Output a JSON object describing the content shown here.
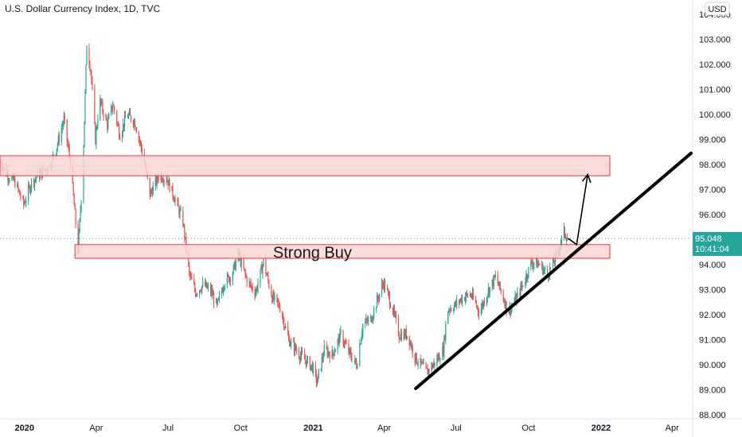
{
  "header": {
    "title": "U.S. Dollar Currency Index, 1D, TVC"
  },
  "axis": {
    "currency": "USD"
  },
  "colors": {
    "up": "#26a69a",
    "down": "#ef5350",
    "zone_fill": "#fcd5d5",
    "zone_stroke": "#e53935",
    "label_bg": "#26a69a",
    "line": "#000000"
  },
  "chart_data": {
    "type": "candlestick",
    "x_ticks": [
      {
        "date": "2020-01-01",
        "label": "2020",
        "bold": true
      },
      {
        "date": "2020-04-01",
        "label": "Apr"
      },
      {
        "date": "2020-07-01",
        "label": "Jul"
      },
      {
        "date": "2020-10-01",
        "label": "Oct"
      },
      {
        "date": "2021-01-01",
        "label": "2021",
        "bold": true
      },
      {
        "date": "2021-04-01",
        "label": "Apr"
      },
      {
        "date": "2021-07-01",
        "label": "Jul"
      },
      {
        "date": "2021-10-01",
        "label": "Oct"
      },
      {
        "date": "2022-01-01",
        "label": "2022",
        "bold": true
      },
      {
        "date": "2022-04-01",
        "label": "Apr"
      }
    ],
    "y_ticks": [
      "104.000",
      "103.000",
      "102.000",
      "101.000",
      "100.000",
      "99.000",
      "98.000",
      "97.000",
      "96.000",
      "95.000",
      "94.000",
      "93.000",
      "92.000",
      "91.000",
      "90.000",
      "89.000",
      "88.000"
    ],
    "ylim": [
      88,
      104
    ],
    "xlim": [
      "2019-12-01",
      "2022-04-25"
    ],
    "path": [
      [
        "2019-12-02",
        98.1
      ],
      [
        "2019-12-10",
        97.6
      ],
      [
        "2019-12-20",
        97.3
      ],
      [
        "2019-12-31",
        96.4
      ],
      [
        "2020-01-10",
        97.3
      ],
      [
        "2020-01-20",
        97.6
      ],
      [
        "2020-02-01",
        97.9
      ],
      [
        "2020-02-10",
        98.6
      ],
      [
        "2020-02-20",
        99.8
      ],
      [
        "2020-02-28",
        98.1
      ],
      [
        "2020-03-09",
        94.6
      ],
      [
        "2020-03-15",
        97.8
      ],
      [
        "2020-03-20",
        102.8
      ],
      [
        "2020-03-25",
        101.8
      ],
      [
        "2020-03-31",
        99.0
      ],
      [
        "2020-04-05",
        100.6
      ],
      [
        "2020-04-15",
        99.6
      ],
      [
        "2020-04-22",
        100.4
      ],
      [
        "2020-05-01",
        99.2
      ],
      [
        "2020-05-10",
        100.0
      ],
      [
        "2020-05-20",
        99.7
      ],
      [
        "2020-05-31",
        98.3
      ],
      [
        "2020-06-08",
        96.8
      ],
      [
        "2020-06-20",
        97.6
      ],
      [
        "2020-06-30",
        97.4
      ],
      [
        "2020-07-10",
        96.6
      ],
      [
        "2020-07-20",
        95.7
      ],
      [
        "2020-07-28",
        93.6
      ],
      [
        "2020-08-05",
        92.9
      ],
      [
        "2020-08-15",
        93.2
      ],
      [
        "2020-08-25",
        92.9
      ],
      [
        "2020-09-01",
        92.3
      ],
      [
        "2020-09-10",
        93.3
      ],
      [
        "2020-09-20",
        93.6
      ],
      [
        "2020-09-28",
        94.4
      ],
      [
        "2020-10-10",
        93.3
      ],
      [
        "2020-10-20",
        92.9
      ],
      [
        "2020-10-30",
        94.1
      ],
      [
        "2020-11-10",
        92.7
      ],
      [
        "2020-11-20",
        92.3
      ],
      [
        "2020-12-01",
        91.0
      ],
      [
        "2020-12-15",
        90.4
      ],
      [
        "2020-12-31",
        89.9
      ],
      [
        "2021-01-06",
        89.3
      ],
      [
        "2021-01-15",
        90.6
      ],
      [
        "2021-01-25",
        90.4
      ],
      [
        "2021-02-05",
        91.2
      ],
      [
        "2021-02-15",
        90.5
      ],
      [
        "2021-02-25",
        90.0
      ],
      [
        "2021-03-05",
        91.6
      ],
      [
        "2021-03-15",
        91.8
      ],
      [
        "2021-03-31",
        93.3
      ],
      [
        "2021-04-10",
        92.4
      ],
      [
        "2021-04-20",
        91.2
      ],
      [
        "2021-05-01",
        91.2
      ],
      [
        "2021-05-10",
        90.3
      ],
      [
        "2021-05-25",
        89.7
      ],
      [
        "2021-06-05",
        90.1
      ],
      [
        "2021-06-15",
        90.6
      ],
      [
        "2021-06-20",
        92.2
      ],
      [
        "2021-07-01",
        92.4
      ],
      [
        "2021-07-10",
        92.7
      ],
      [
        "2021-07-20",
        92.8
      ],
      [
        "2021-07-31",
        92.1
      ],
      [
        "2021-08-10",
        92.9
      ],
      [
        "2021-08-20",
        93.5
      ],
      [
        "2021-08-31",
        92.6
      ],
      [
        "2021-09-05",
        92.1
      ],
      [
        "2021-09-15",
        92.6
      ],
      [
        "2021-09-25",
        93.3
      ],
      [
        "2021-10-05",
        94.1
      ],
      [
        "2021-10-15",
        94.0
      ],
      [
        "2021-10-25",
        93.6
      ],
      [
        "2021-11-05",
        94.3
      ],
      [
        "2021-11-15",
        95.3
      ],
      [
        "2021-11-20",
        95.05
      ]
    ],
    "zones": [
      {
        "x0": "2019-12-01",
        "x1": "2022-01-12",
        "y_low": 97.55,
        "y_high": 98.35
      },
      {
        "x0": "2020-03-05",
        "x1": "2022-01-12",
        "y_low": 94.25,
        "y_high": 94.8
      }
    ],
    "annotation": {
      "text": "Strong Buy",
      "x": "2020-12-31",
      "y": 94.5
    },
    "trendline": {
      "start": [
        "2021-05-11",
        89.05
      ],
      "end": [
        "2022-04-25",
        98.45
      ]
    },
    "projection": [
      [
        "2021-11-20",
        95.05
      ],
      [
        "2021-12-01",
        94.8
      ],
      [
        "2021-12-15",
        97.6
      ]
    ],
    "last_price": {
      "price_label": "95.048",
      "time_label": "10:41:04",
      "value": 95.048
    }
  }
}
